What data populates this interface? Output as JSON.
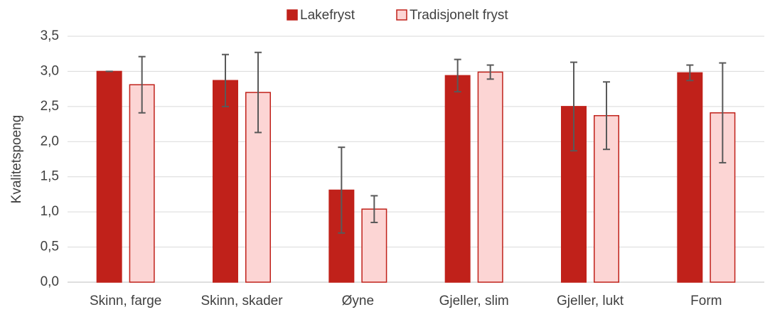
{
  "chart_data": {
    "type": "bar",
    "y_label": "Kvalitetspoeng",
    "categories": [
      "Skinn, farge",
      "Skinn, skader",
      "Øyne",
      "Gjeller, slim",
      "Gjeller, lukt",
      "Form"
    ],
    "series": [
      {
        "name": "Lakefryst",
        "color": "#c0211a",
        "fill": "#c0211a",
        "values": [
          3.0,
          2.87,
          1.31,
          2.94,
          2.5,
          2.98
        ],
        "errors": [
          0.0,
          0.37,
          0.61,
          0.23,
          0.63,
          0.11
        ]
      },
      {
        "name": "Tradisjonelt fryst",
        "color": "#c0211a",
        "fill": "#fcd5d4",
        "values": [
          2.81,
          2.7,
          1.04,
          2.99,
          2.37,
          2.41
        ],
        "errors": [
          0.4,
          0.57,
          0.19,
          0.1,
          0.48,
          0.71
        ]
      }
    ],
    "ylim": [
      0,
      3.5
    ],
    "yticks": [
      {
        "value": 0,
        "label": "0,0"
      },
      {
        "value": 0.5,
        "label": "0,5"
      },
      {
        "value": 1,
        "label": "1,0"
      },
      {
        "value": 1.5,
        "label": "1,5"
      },
      {
        "value": 2,
        "label": "2,0"
      },
      {
        "value": 2.5,
        "label": "2,5"
      },
      {
        "value": 3,
        "label": "3,0"
      },
      {
        "value": 3.5,
        "label": "3,5"
      }
    ],
    "grid": true,
    "legend": "top",
    "error_color": "#595959"
  }
}
